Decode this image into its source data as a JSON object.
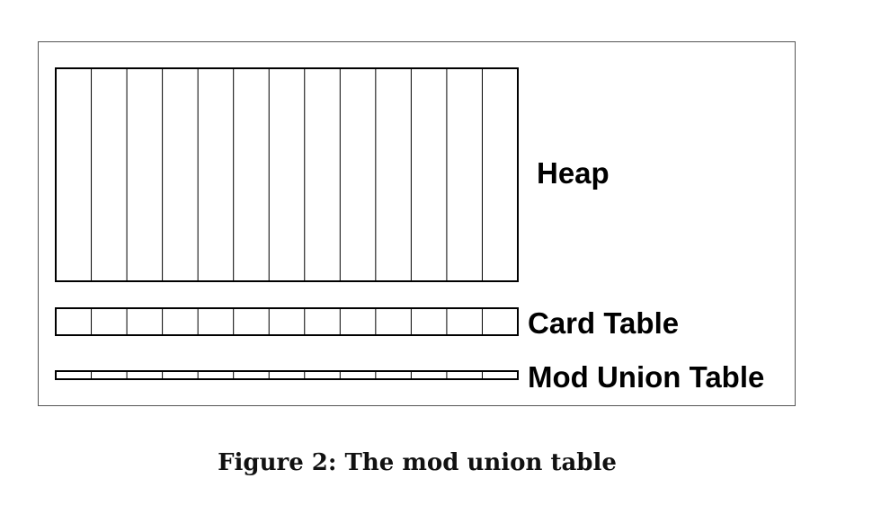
{
  "diagram": {
    "heap_label": "Heap",
    "card_table_label": "Card Table",
    "mod_union_table_label": "Mod Union Table",
    "columns": 13
  },
  "caption": "Figure 2: The mod union table",
  "colors": {
    "stroke": "#000000",
    "frame": "#555555",
    "background": "#ffffff"
  }
}
